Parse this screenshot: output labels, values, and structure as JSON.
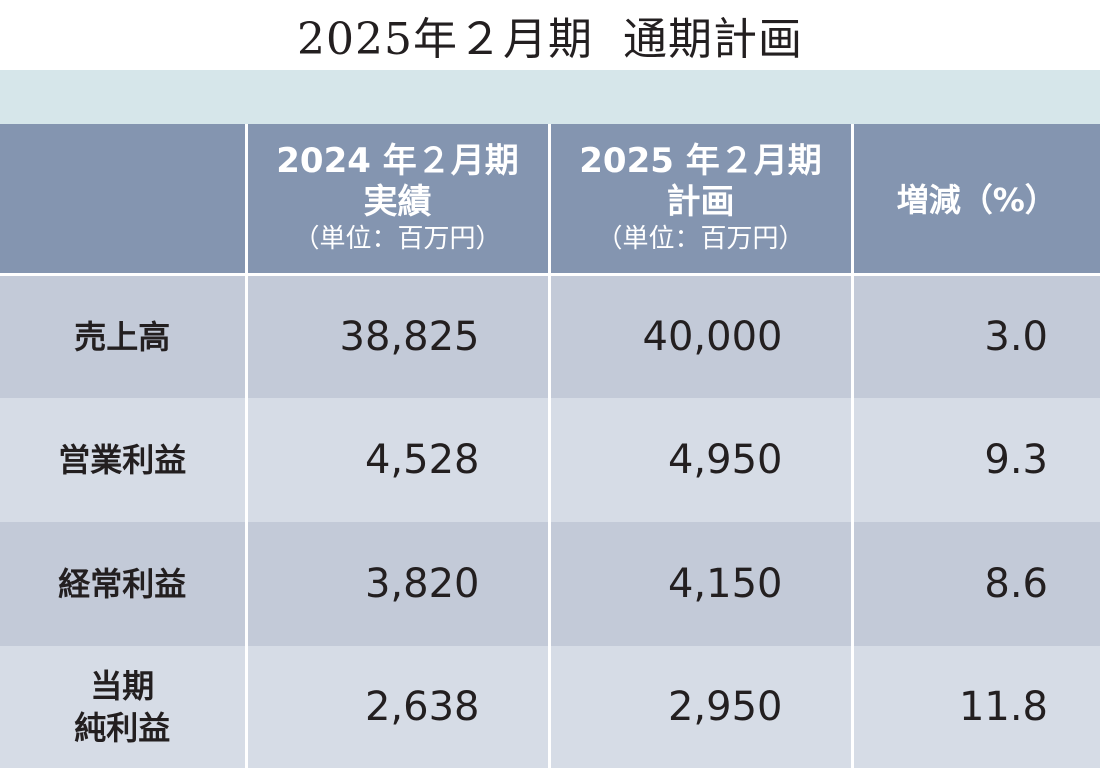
{
  "title": "2025年２月期  通期計画",
  "table": {
    "headers": [
      {
        "main": "",
        "unit": ""
      },
      {
        "main_lines": [
          "2024 年２月期",
          "実績"
        ],
        "unit": "（単位：百万円）"
      },
      {
        "main_lines": [
          "2025 年２月期",
          "計画"
        ],
        "unit": "（単位：百万円）"
      },
      {
        "main": "増減（%）"
      }
    ],
    "rows": [
      {
        "label_lines": [
          "売上高"
        ],
        "actual_2024": "38,825",
        "plan_2025": "40,000",
        "change_pct": "3.0"
      },
      {
        "label_lines": [
          "営業利益"
        ],
        "actual_2024": "4,528",
        "plan_2025": "4,950",
        "change_pct": "9.3"
      },
      {
        "label_lines": [
          "経常利益"
        ],
        "actual_2024": "3,820",
        "plan_2025": "4,150",
        "change_pct": "8.6"
      },
      {
        "label_lines": [
          "当期",
          "純利益"
        ],
        "actual_2024": "2,638",
        "plan_2025": "2,950",
        "change_pct": "11.8"
      }
    ]
  },
  "colors": {
    "header_bg": "#8495b0",
    "band_bg": "#d6e6ea",
    "row_dark": "#c3cad8",
    "row_light": "#d6dce6",
    "text": "#231f20"
  }
}
